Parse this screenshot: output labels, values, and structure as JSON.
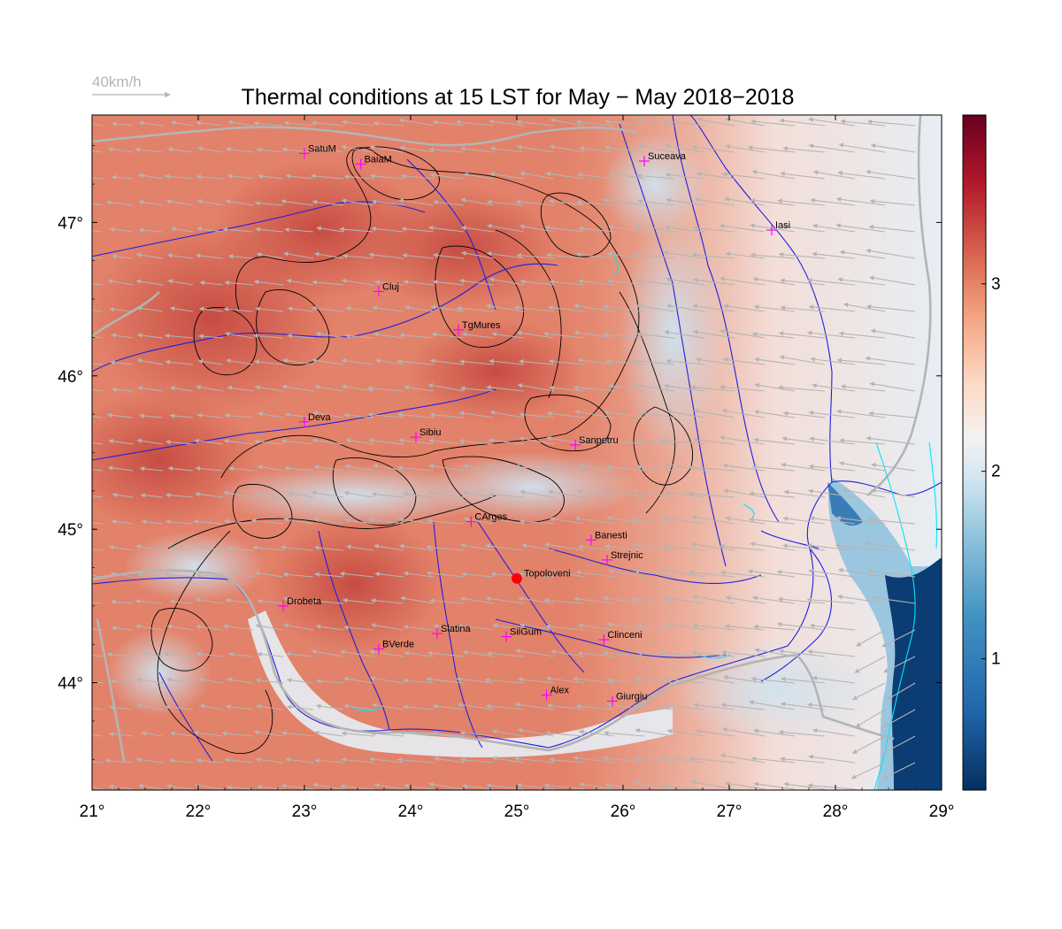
{
  "title": "Thermal conditions at 15 LST for May − May  2018−2018",
  "wind_scale": {
    "label": "40km/h",
    "speed": 40
  },
  "lon_range": [
    21,
    29
  ],
  "lat_range": [
    43.3,
    47.7
  ],
  "x_ticks": [
    {
      "value": 21,
      "label": "21°"
    },
    {
      "value": 22,
      "label": "22°"
    },
    {
      "value": 23,
      "label": "23°"
    },
    {
      "value": 24,
      "label": "24°"
    },
    {
      "value": 25,
      "label": "25°"
    },
    {
      "value": 26,
      "label": "26°"
    },
    {
      "value": 27,
      "label": "27°"
    },
    {
      "value": 28,
      "label": "28°"
    },
    {
      "value": 29,
      "label": "29°"
    }
  ],
  "y_ticks": [
    {
      "value": 44,
      "label": "44°"
    },
    {
      "value": 45,
      "label": "45°"
    },
    {
      "value": 46,
      "label": "46°"
    },
    {
      "value": 47,
      "label": "47°"
    }
  ],
  "colorbar": {
    "min": 0.3,
    "max": 3.9,
    "ticks": [
      {
        "value": 1,
        "label": "1"
      },
      {
        "value": 2,
        "label": "2"
      },
      {
        "value": 3,
        "label": "3"
      }
    ],
    "colors": {
      "high": "#67001f",
      "mid": "#f4f2f2",
      "low": "#053061"
    }
  },
  "highlight": {
    "name": "Topoloveni",
    "lon": 25.0,
    "lat": 44.68,
    "color": "#ff0000"
  },
  "cities": [
    {
      "name": "SatuM",
      "lon": 23.0,
      "lat": 47.45
    },
    {
      "name": "BaiaM",
      "lon": 23.53,
      "lat": 47.38
    },
    {
      "name": "Suceava",
      "lon": 26.2,
      "lat": 47.4
    },
    {
      "name": "Iasi",
      "lon": 27.4,
      "lat": 46.95
    },
    {
      "name": "Cluj",
      "lon": 23.7,
      "lat": 46.55
    },
    {
      "name": "TgMures",
      "lon": 24.45,
      "lat": 46.3
    },
    {
      "name": "Deva",
      "lon": 23.0,
      "lat": 45.7
    },
    {
      "name": "Sibiu",
      "lon": 24.05,
      "lat": 45.6
    },
    {
      "name": "Sanpetru",
      "lon": 25.55,
      "lat": 45.55
    },
    {
      "name": "CArges",
      "lon": 24.57,
      "lat": 45.05
    },
    {
      "name": "Banesti",
      "lon": 25.7,
      "lat": 44.93
    },
    {
      "name": "Strejnic",
      "lon": 25.85,
      "lat": 44.8
    },
    {
      "name": "Drobeta",
      "lon": 22.8,
      "lat": 44.5
    },
    {
      "name": "Slatina",
      "lon": 24.25,
      "lat": 44.32
    },
    {
      "name": "SilGum",
      "lon": 24.9,
      "lat": 44.3
    },
    {
      "name": "Clinceni",
      "lon": 25.82,
      "lat": 44.28
    },
    {
      "name": "BVerde",
      "lon": 23.7,
      "lat": 44.22
    },
    {
      "name": "Alex",
      "lon": 25.28,
      "lat": 43.92
    },
    {
      "name": "Giurgiu",
      "lon": 25.9,
      "lat": 43.88
    }
  ],
  "colors": {
    "marker": "#ff00ff",
    "rivers": "#1f1fe0",
    "borders": "#b4b4b4",
    "vectors": "#b4b4b4",
    "lakes": "#00e5ff",
    "contours": "#000000"
  }
}
